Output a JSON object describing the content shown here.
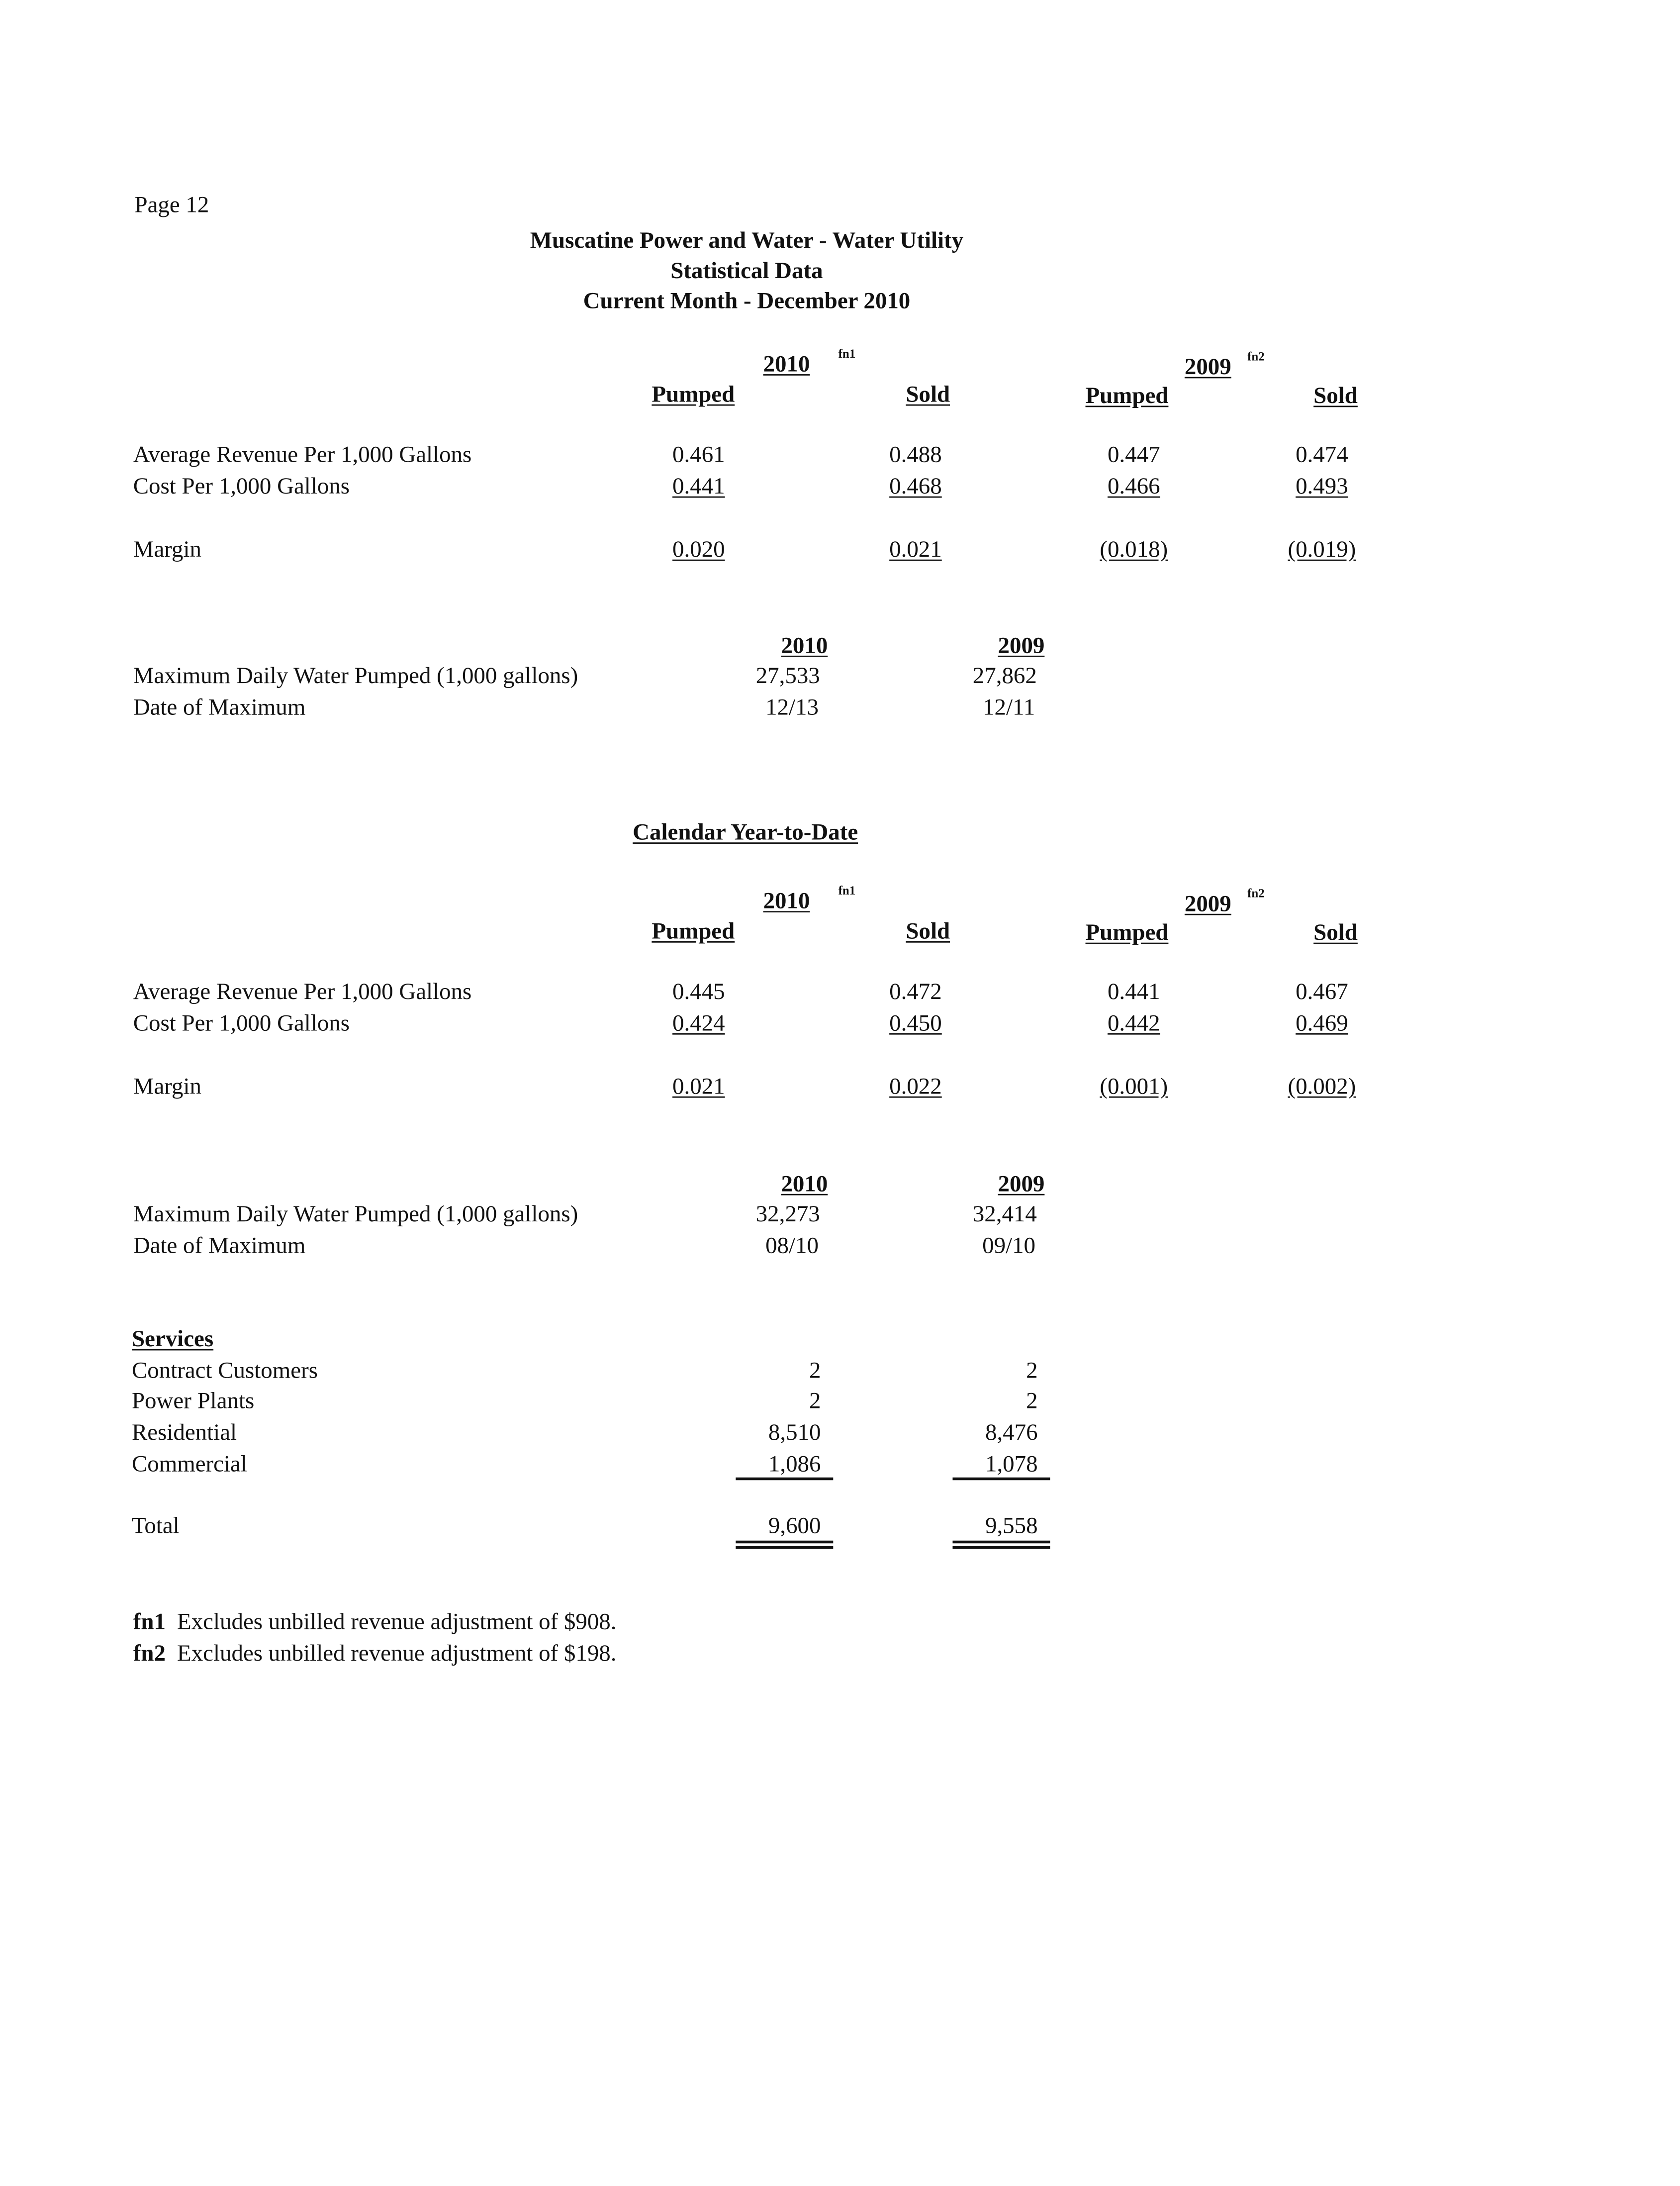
{
  "page_label": "Page 12",
  "title": [
    "Muscatine Power and Water - Water Utility",
    "Statistical Data",
    "Current Month - December 2010"
  ],
  "month": {
    "year_a": "2010",
    "fn_a": "fn1",
    "year_b": "2009",
    "fn_b": "fn2",
    "cols": [
      "Pumped",
      "Sold",
      "Pumped",
      "Sold"
    ],
    "rows": [
      {
        "label": "Average Revenue Per 1,000 Gallons",
        "values": [
          "0.461",
          "0.488",
          "0.447",
          "0.474"
        ]
      },
      {
        "label": "Cost Per 1,000 Gallons",
        "values": [
          "0.441",
          "0.468",
          "0.466",
          "0.493"
        ]
      },
      {
        "label": "Margin",
        "values": [
          "0.020",
          "0.021",
          "(0.018)",
          "(0.019)"
        ]
      }
    ],
    "max": {
      "years": [
        "2010",
        "2009"
      ],
      "label": "Maximum Daily Water Pumped (1,000 gallons)",
      "values": [
        "27,533",
        "27,862"
      ],
      "date_label": "Date of Maximum",
      "dates": [
        "12/13",
        "12/11"
      ]
    }
  },
  "ytd_heading": "Calendar Year-to-Date",
  "ytd": {
    "year_a": "2010",
    "fn_a": "fn1",
    "year_b": "2009",
    "fn_b": "fn2",
    "cols": [
      "Pumped",
      "Sold",
      "Pumped",
      "Sold"
    ],
    "rows": [
      {
        "label": "Average Revenue Per 1,000 Gallons",
        "values": [
          "0.445",
          "0.472",
          "0.441",
          "0.467"
        ]
      },
      {
        "label": "Cost Per 1,000 Gallons",
        "values": [
          "0.424",
          "0.450",
          "0.442",
          "0.469"
        ]
      },
      {
        "label": "Margin",
        "values": [
          "0.021",
          "0.022",
          "(0.001)",
          "(0.002)"
        ]
      }
    ],
    "max": {
      "years": [
        "2010",
        "2009"
      ],
      "label": "Maximum Daily Water Pumped (1,000 gallons)",
      "values": [
        "32,273",
        "32,414"
      ],
      "date_label": "Date of Maximum",
      "dates": [
        "08/10",
        "09/10"
      ]
    }
  },
  "services": {
    "heading": "Services",
    "rows": [
      {
        "label": "Contract Customers",
        "values": [
          "2",
          "2"
        ]
      },
      {
        "label": "Power Plants",
        "values": [
          "2",
          "2"
        ]
      },
      {
        "label": "Residential",
        "values": [
          "8,510",
          "8,476"
        ]
      },
      {
        "label": "Commercial",
        "values": [
          "1,086",
          "1,078"
        ]
      }
    ],
    "total": {
      "label": "Total",
      "values": [
        "9,600",
        "9,558"
      ]
    }
  },
  "footnotes": [
    {
      "tag": "fn1",
      "text": "Excludes unbilled revenue adjustment of $908."
    },
    {
      "tag": "fn2",
      "text": "Excludes unbilled revenue adjustment of $198."
    }
  ]
}
